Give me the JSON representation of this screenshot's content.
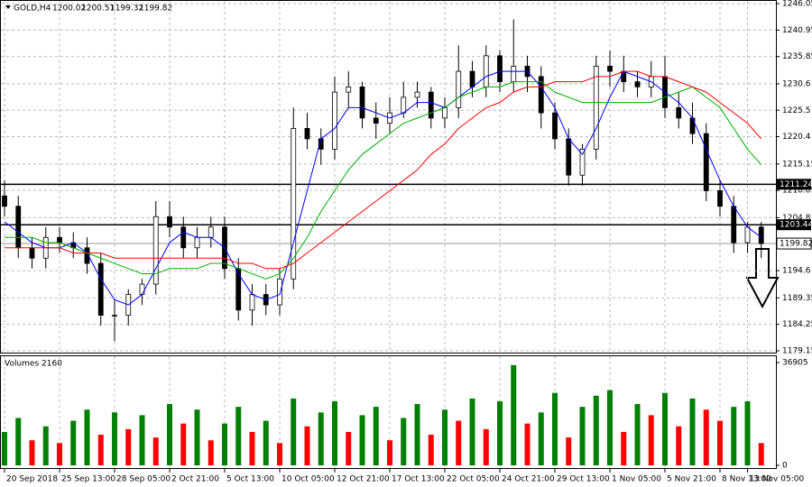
{
  "chart_data": {
    "type": "candlestick",
    "header": {
      "symbol": "GOLD,H4",
      "ohlc": [
        1200.02,
        1200.51,
        1199.32,
        1199.82
      ]
    },
    "categories": [
      "20 Sep 2018",
      null,
      null,
      null,
      "25 Sep 13:00",
      null,
      null,
      null,
      "28 Sep 05:00",
      null,
      null,
      null,
      "2 Oct 21:00",
      null,
      null,
      null,
      "5 Oct 13:00",
      null,
      null,
      null,
      "10 Oct 05:00",
      null,
      null,
      null,
      "12 Oct 21:00",
      null,
      null,
      null,
      "17 Oct 13:00",
      null,
      null,
      null,
      "22 Oct 05:00",
      null,
      null,
      null,
      "24 Oct 21:00",
      null,
      null,
      null,
      "29 Oct 13:00",
      null,
      null,
      null,
      "1 Nov 05:00",
      null,
      null,
      null,
      "5 Nov 21:00",
      null,
      null,
      null,
      "8 Nov 13:00",
      null,
      "13 Nov 05:00",
      null
    ],
    "open": [
      1209,
      1207,
      1199,
      1197,
      1201,
      1200,
      1199,
      1196,
      1186,
      1186,
      1190,
      1192,
      1205,
      1203,
      1199,
      1201,
      1203,
      1195,
      1187,
      1190,
      1188,
      1193,
      1222,
      1220,
      1218,
      1229,
      1230,
      1224,
      1223,
      1225,
      1228,
      1229,
      1224,
      1226,
      1233,
      1230,
      1236,
      1231,
      1234,
      1232,
      1225,
      1220,
      1213,
      1218,
      1234,
      1233,
      1231,
      1230,
      1232,
      1226,
      1224,
      1221,
      1210,
      1207,
      1200,
      1203
    ],
    "high": [
      1212,
      1209,
      1201,
      1203,
      1203,
      1202,
      1201,
      1198,
      1189,
      1191,
      1193,
      1208,
      1208,
      1205,
      1203,
      1205,
      1205,
      1197,
      1192,
      1192,
      1195,
      1226,
      1225,
      1222,
      1232,
      1233,
      1231,
      1227,
      1228,
      1231,
      1231,
      1230,
      1228,
      1238,
      1235,
      1238,
      1237,
      1243,
      1236,
      1234,
      1227,
      1222,
      1219,
      1236,
      1237,
      1236,
      1233,
      1235,
      1236,
      1229,
      1227,
      1223,
      1212,
      1209,
      1204,
      1204
    ],
    "low": [
      1205,
      1197,
      1195,
      1195,
      1198,
      1197,
      1194,
      1184,
      1181,
      1184,
      1188,
      1190,
      1201,
      1197,
      1197,
      1199,
      1193,
      1185,
      1184,
      1186,
      1186,
      1191,
      1218,
      1215,
      1216,
      1226,
      1222,
      1220,
      1221,
      1224,
      1226,
      1222,
      1222,
      1224,
      1228,
      1228,
      1229,
      1229,
      1229,
      1222,
      1218,
      1211,
      1211,
      1216,
      1230,
      1229,
      1228,
      1228,
      1224,
      1222,
      1219,
      1208,
      1205,
      1198,
      1198,
      1197
    ],
    "close": [
      1207,
      1199,
      1197,
      1201,
      1200,
      1199,
      1196,
      1186,
      1186,
      1190,
      1192,
      1205,
      1203,
      1199,
      1201,
      1203,
      1195,
      1187,
      1190,
      1188,
      1193,
      1222,
      1220,
      1218,
      1229,
      1230,
      1224,
      1223,
      1225,
      1228,
      1229,
      1224,
      1226,
      1233,
      1230,
      1236,
      1231,
      1234,
      1232,
      1225,
      1220,
      1213,
      1218,
      1234,
      1233,
      1231,
      1230,
      1232,
      1226,
      1224,
      1221,
      1210,
      1207,
      1200,
      1203,
      1199.82
    ],
    "candle_color": "#000000",
    "series": [
      {
        "color": "#0000ff",
        "values": [
          1204,
          1202,
          1200,
          1199,
          1199,
          1200,
          1198,
          1193,
          1189,
          1188,
          1190,
          1195,
          1200,
          1202,
          1201,
          1201,
          1199,
          1194,
          1190,
          1189,
          1190,
          1200,
          1210,
          1220,
          1222,
          1226,
          1226,
          1225,
          1224,
          1225,
          1227,
          1227,
          1226,
          1228,
          1230,
          1232,
          1233,
          1233,
          1233,
          1230,
          1226,
          1220,
          1217,
          1222,
          1228,
          1233,
          1232,
          1231,
          1229,
          1227,
          1224,
          1218,
          1212,
          1207,
          1203,
          1201
        ]
      },
      {
        "color": "#00b000",
        "values": [
          1201,
          1201,
          1201,
          1200,
          1200,
          1199,
          1198,
          1197,
          1196,
          1195,
          1194,
          1194,
          1195,
          1195,
          1195,
          1196,
          1196,
          1195,
          1194,
          1193,
          1194,
          1197,
          1201,
          1206,
          1210,
          1214,
          1217,
          1219,
          1221,
          1223,
          1224,
          1225,
          1226,
          1228,
          1229,
          1230,
          1230,
          1231,
          1231,
          1231,
          1229,
          1228,
          1227,
          1227,
          1227,
          1227,
          1227,
          1227,
          1228,
          1229,
          1230,
          1228,
          1226,
          1222,
          1218,
          1215
        ]
      },
      {
        "color": "#ff0000",
        "values": [
          1199,
          1199,
          1199,
          1199,
          1199,
          1198,
          1198,
          1198,
          1197,
          1197,
          1197,
          1197,
          1197,
          1197,
          1197,
          1197,
          1197,
          1196,
          1196,
          1195,
          1195,
          1196,
          1198,
          1200,
          1202,
          1204,
          1206,
          1208,
          1210,
          1212,
          1214,
          1217,
          1219,
          1222,
          1224,
          1226,
          1227,
          1229,
          1230,
          1230,
          1231,
          1231,
          1231,
          1232,
          1232,
          1233,
          1233,
          1232,
          1232,
          1231,
          1230,
          1229,
          1227,
          1225,
          1223,
          1220
        ]
      }
    ],
    "ylim": [
      1179.15,
      1246.05
    ],
    "yticks": [
      1179.15,
      1184.25,
      1189.35,
      1194.6,
      1204.8,
      1210.05,
      1215.15,
      1220.4,
      1225.5,
      1230.6,
      1235.85,
      1240.95,
      1246.05
    ],
    "grid": true,
    "levels": [
      1211.24,
      1203.44
    ],
    "last_price": 1199.82,
    "volume": {
      "title": "Volumes 2160",
      "up_color": "#008000",
      "down_color": "#ff0000",
      "ylim": [
        0,
        36905
      ],
      "yticks": [
        0,
        36905
      ],
      "values": [
        12000,
        17000,
        9000,
        14000,
        8000,
        16000,
        20000,
        11000,
        19000,
        13000,
        18000,
        10000,
        22000,
        15000,
        20000,
        9000,
        15000,
        21000,
        12000,
        16000,
        8000,
        24000,
        14000,
        19000,
        23000,
        12000,
        18000,
        21000,
        9000,
        17000,
        22000,
        11000,
        20000,
        16000,
        24000,
        13000,
        23000,
        36000,
        15000,
        19000,
        26000,
        10000,
        21000,
        25000,
        27000,
        12000,
        22000,
        18000,
        26000,
        14000,
        24000,
        20000,
        16000,
        21000,
        23000,
        8000
      ]
    }
  }
}
